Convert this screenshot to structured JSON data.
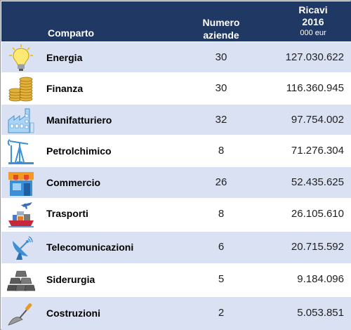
{
  "header": {
    "comparto": "Comparto",
    "numero_line1": "Numero",
    "numero_line2": "aziende",
    "ricavi_line1": "Ricavi",
    "ricavi_line2": "2016",
    "ricavi_unit": "000 eur"
  },
  "colors": {
    "header_bg": "#1f3864",
    "row_alt": "#d9e1f2",
    "row_plain": "#ffffff"
  },
  "rows": [
    {
      "icon": "lightbulb-icon",
      "comparto": "Energia",
      "aziende": "30",
      "ricavi": "127.030.622"
    },
    {
      "icon": "coins-icon",
      "comparto": "Finanza",
      "aziende": "30",
      "ricavi": "116.360.945"
    },
    {
      "icon": "factory-icon",
      "comparto": "Manifatturiero",
      "aziende": "32",
      "ricavi": "97.754.002"
    },
    {
      "icon": "oil-pump-icon",
      "comparto": "Petrolchimico",
      "aziende": "8",
      "ricavi": "71.276.304"
    },
    {
      "icon": "shop-icon",
      "comparto": "Commercio",
      "aziende": "26",
      "ricavi": "52.435.625"
    },
    {
      "icon": "transport-icon",
      "comparto": "Trasporti",
      "aziende": "8",
      "ricavi": "26.105.610"
    },
    {
      "icon": "satellite-dish-icon",
      "comparto": "Telecomunicazioni",
      "aziende": "6",
      "ricavi": "20.715.592"
    },
    {
      "icon": "steel-ingots-icon",
      "comparto": "Siderurgia",
      "aziende": "5",
      "ricavi": "9.184.096"
    },
    {
      "icon": "trowel-icon",
      "comparto": "Costruzioni",
      "aziende": "2",
      "ricavi": "5.053.851"
    }
  ]
}
